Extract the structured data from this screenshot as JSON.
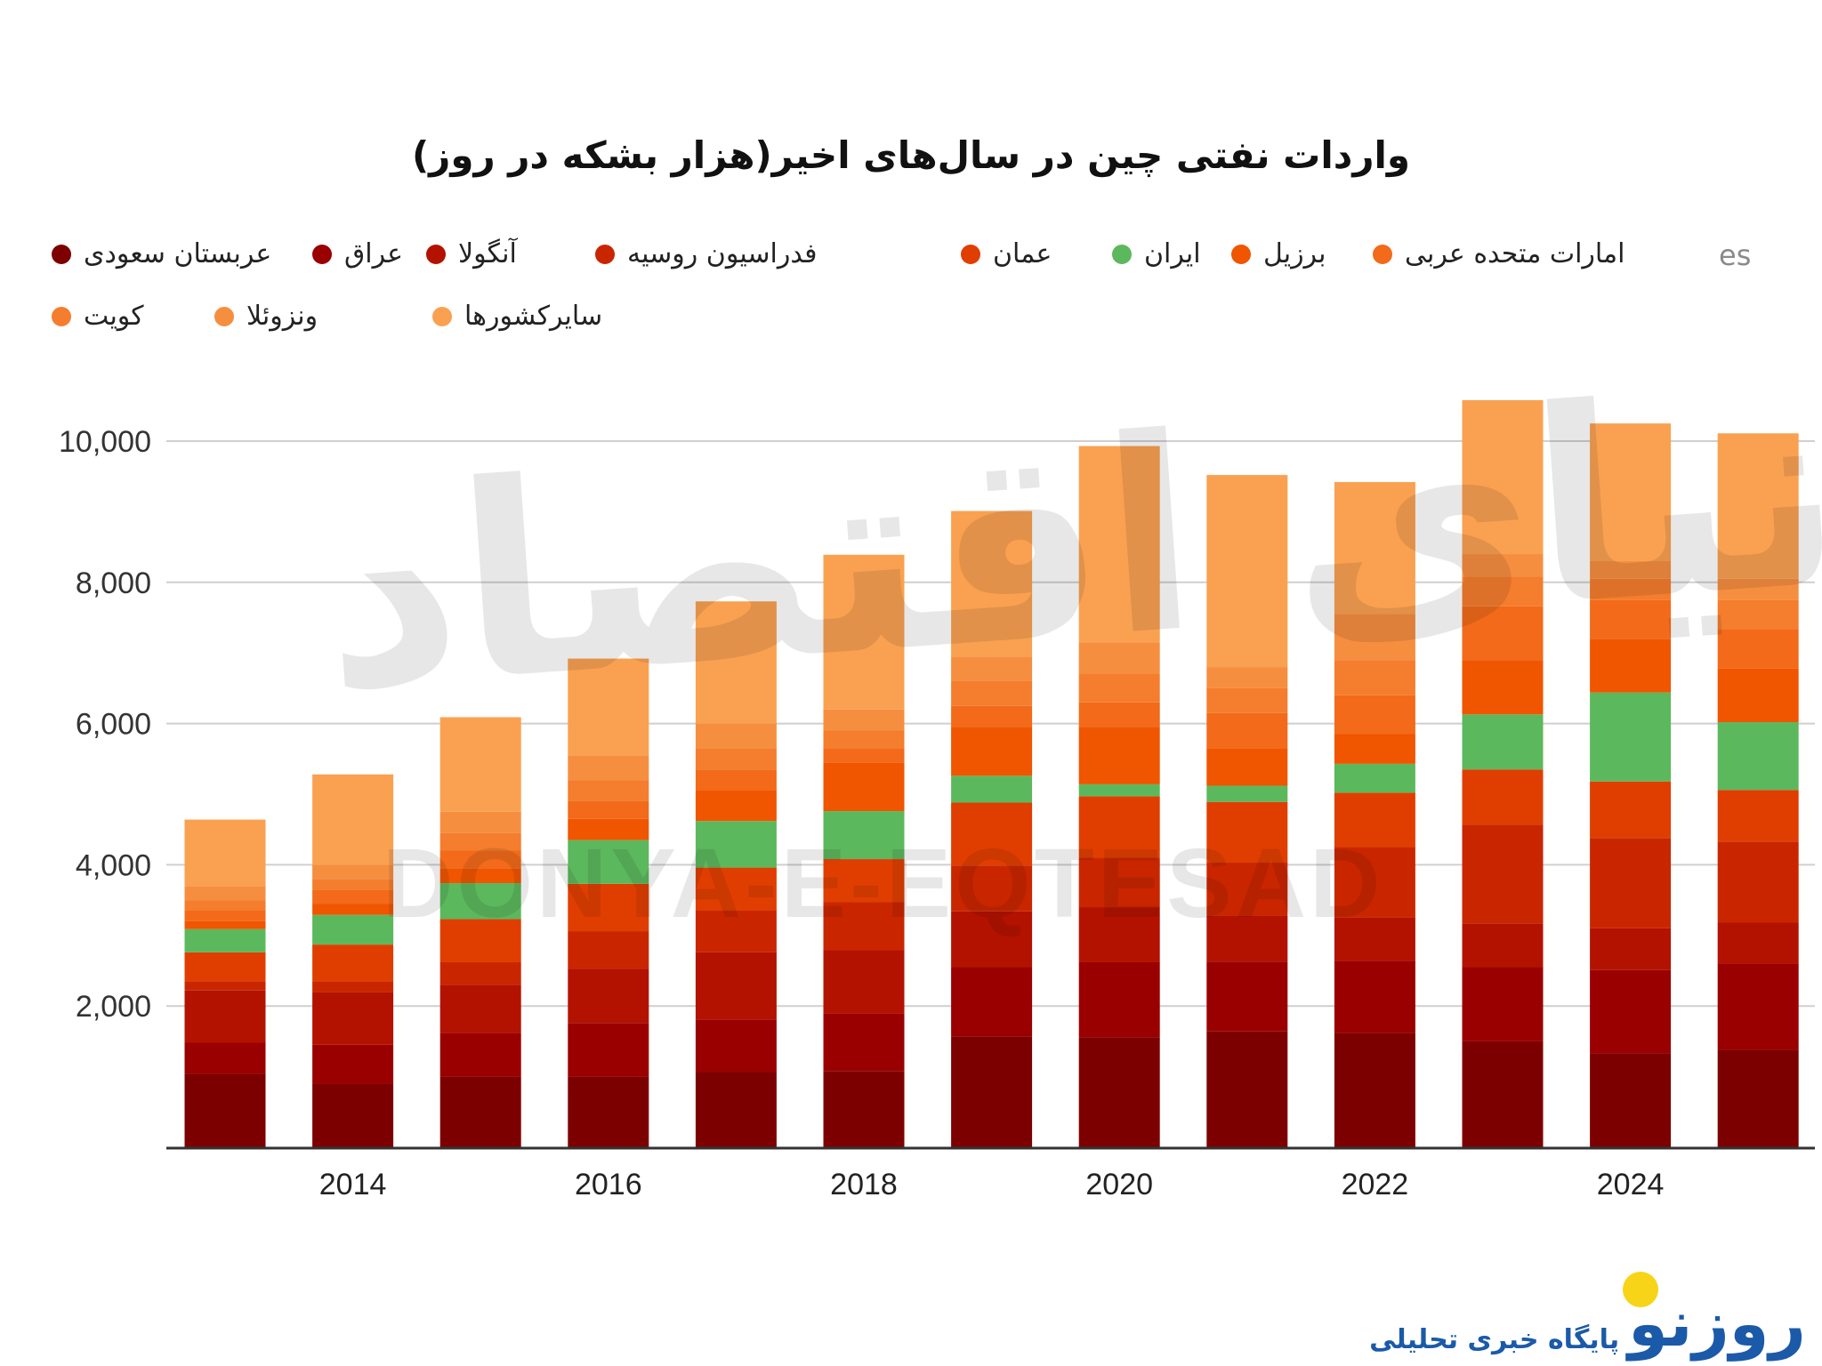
{
  "title": "واردات نفتی چین در سال‌های اخیر(هزار بشکه در روز)",
  "legend_cutoff_text": "es",
  "watermark": {
    "persian": "دنیای اقتصاد",
    "latin": "DONYA-E-EQTESAD"
  },
  "logo": {
    "name": "روزنو",
    "subtitle": "پایگاه خبری تحلیلی",
    "text_color": "#1b5aa8",
    "sun_color": "#f7d417"
  },
  "chart_data": {
    "type": "bar",
    "stacked": true,
    "title": "واردات نفتی چین در سال‌های اخیر(هزار بشکه در روز)",
    "xlabel": "",
    "ylabel": "",
    "ylim": [
      0,
      10000
    ],
    "yticks": [
      "2,000",
      "4,000",
      "6,000",
      "8,000",
      "10,000"
    ],
    "ytick_values": [
      2000,
      4000,
      6000,
      8000,
      10000
    ],
    "xticks": [
      "2014",
      "2016",
      "2018",
      "2020",
      "2022",
      "2024"
    ],
    "grid": true,
    "legend_position": "top",
    "categories": [
      2013,
      2014,
      2015,
      2016,
      2017,
      2018,
      2019,
      2020,
      2021,
      2022,
      2023,
      2024,
      2025
    ],
    "series": [
      {
        "name": "عربستان سعودی",
        "color": "#7d0000",
        "values": [
          1040,
          900,
          1000,
          1000,
          1070,
          1080,
          1570,
          1560,
          1640,
          1620,
          1500,
          1330,
          1380
        ]
      },
      {
        "name": "عراق",
        "color": "#9a0000",
        "values": [
          440,
          550,
          620,
          760,
          740,
          810,
          980,
          1060,
          990,
          1020,
          1050,
          1180,
          1220
        ]
      },
      {
        "name": "آنگولا",
        "color": "#b31200",
        "values": [
          740,
          750,
          680,
          770,
          950,
          900,
          790,
          780,
          650,
          610,
          620,
          590,
          580
        ]
      },
      {
        "name": "فدراسیون روسیه",
        "color": "#c92600",
        "values": [
          130,
          150,
          320,
          530,
          590,
          680,
          650,
          700,
          750,
          1000,
          1400,
          1280,
          1150
        ]
      },
      {
        "name": "عمان",
        "color": "#e03e00",
        "values": [
          410,
          520,
          610,
          670,
          610,
          610,
          890,
          870,
          860,
          770,
          780,
          800,
          730
        ]
      },
      {
        "name": "ایران",
        "color": "#5cb85c",
        "values": [
          330,
          420,
          510,
          620,
          660,
          680,
          380,
          170,
          230,
          410,
          780,
          1260,
          960
        ]
      },
      {
        "name": "برزیل",
        "color": "#f05500",
        "values": [
          110,
          160,
          210,
          300,
          430,
          690,
          690,
          810,
          530,
          420,
          770,
          760,
          760
        ]
      },
      {
        "name": "امارات متحده عربی",
        "color": "#f26a1a",
        "values": [
          150,
          200,
          250,
          250,
          300,
          200,
          300,
          350,
          500,
          550,
          760,
          550,
          550
        ]
      },
      {
        "name": "کویت",
        "color": "#f47d2e",
        "values": [
          150,
          150,
          250,
          300,
          300,
          250,
          350,
          400,
          350,
          500,
          420,
          300,
          420
        ]
      },
      {
        "name": "ونزوئلا",
        "color": "#f68e40",
        "values": [
          200,
          200,
          300,
          350,
          350,
          300,
          350,
          450,
          300,
          650,
          320,
          250,
          300
        ]
      },
      {
        "name": "سایرکشورها",
        "color": "#f9a151",
        "values": [
          940,
          1280,
          1340,
          1370,
          1730,
          2190,
          2060,
          2780,
          2720,
          1870,
          2180,
          1950,
          2060
        ]
      }
    ]
  }
}
